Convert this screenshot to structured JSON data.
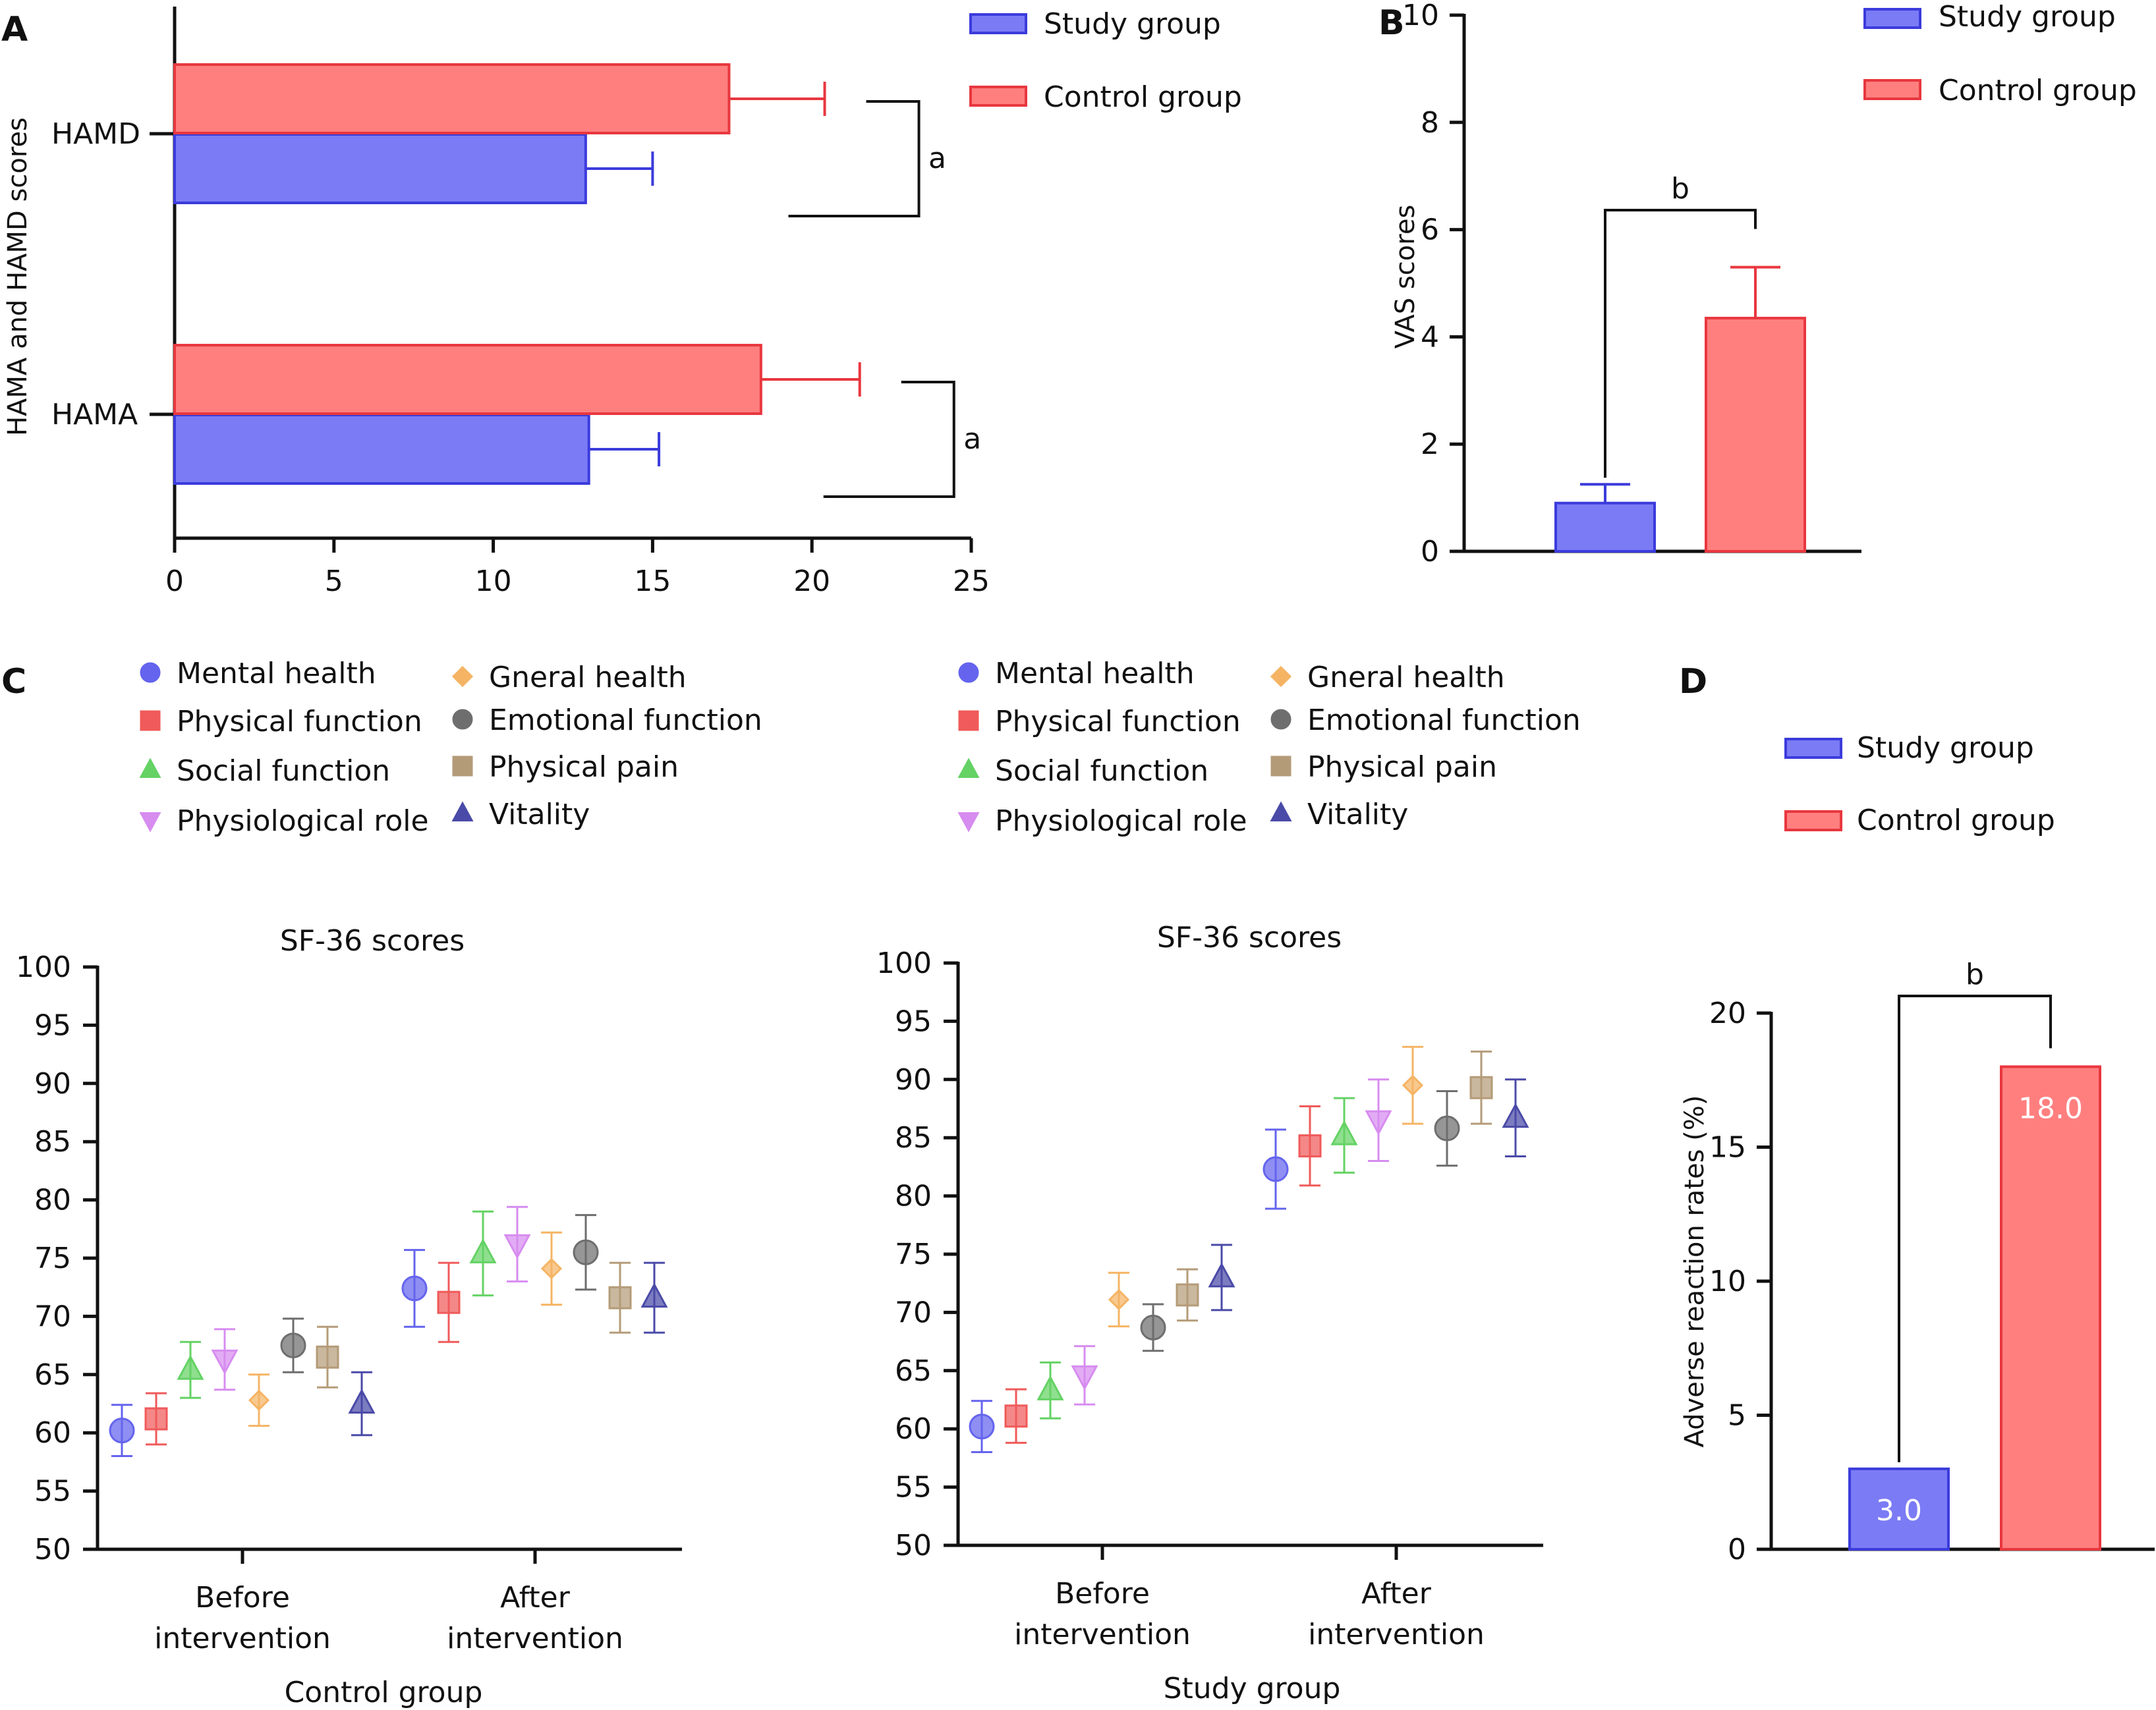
{
  "colors": {
    "study_fill": "#7b7bf5",
    "study_edge": "#3b3bdc",
    "control_fill": "#ff7f7f",
    "control_edge": "#e8373f",
    "axis": "#111111",
    "markers": {
      "mental_health": "#6464ee",
      "physical_function": "#f05a5a",
      "social_function": "#64d264",
      "physiological_role": "#d78cf0",
      "gneral_health": "#f5b464",
      "emotional_function": "#6e6e6e",
      "physical_pain": "#b49b78",
      "vitality": "#4a4aa8"
    }
  },
  "legend": {
    "study": "Study group",
    "control": "Control group"
  },
  "sf36_legend": [
    {
      "key": "mental_health",
      "label": "Mental health",
      "shape": "circle"
    },
    {
      "key": "physical_function",
      "label": "Physical function",
      "shape": "square"
    },
    {
      "key": "social_function",
      "label": "Social function",
      "shape": "triangle-up"
    },
    {
      "key": "physiological_role",
      "label": "Physiological role",
      "shape": "triangle-down"
    },
    {
      "key": "gneral_health",
      "label": "Gneral health",
      "shape": "diamond"
    },
    {
      "key": "emotional_function",
      "label": "Emotional function",
      "shape": "circle"
    },
    {
      "key": "physical_pain",
      "label": "Physical pain",
      "shape": "square"
    },
    {
      "key": "vitality",
      "label": "Vitality",
      "shape": "triangle-up"
    }
  ],
  "chart_data": [
    {
      "panel": "A",
      "type": "bar",
      "orientation": "horizontal",
      "title": "",
      "xlabel": "",
      "ylabel": "HAMA and HAMD scores",
      "xlim": [
        0,
        25
      ],
      "xticks": [
        "0",
        "5",
        "10",
        "15",
        "20",
        "25"
      ],
      "categories": [
        "HAMD",
        "HAMA"
      ],
      "series": [
        {
          "name": "Study group",
          "values": [
            12.9,
            13.0
          ],
          "errors": [
            2.1,
            2.2
          ]
        },
        {
          "name": "Control group",
          "values": [
            17.4,
            18.4
          ],
          "errors": [
            3.0,
            3.1
          ]
        }
      ],
      "significance": [
        "a",
        "a"
      ]
    },
    {
      "panel": "B",
      "type": "bar",
      "title": "",
      "xlabel": "",
      "ylabel": "VAS scores",
      "ylim": [
        0,
        10
      ],
      "yticks": [
        "0",
        "2",
        "4",
        "6",
        "8",
        "10"
      ],
      "series": [
        {
          "name": "Study group",
          "value": 0.9,
          "error": 0.35
        },
        {
          "name": "Control group",
          "value": 4.35,
          "error": 0.95
        }
      ],
      "significance": "b"
    },
    {
      "panel": "C-left",
      "type": "scatter",
      "title": "SF-36 scores",
      "xlabel": "Control group",
      "ylabel": "",
      "ylim": [
        50,
        100
      ],
      "yticks": [
        "50",
        "55",
        "60",
        "65",
        "70",
        "75",
        "80",
        "85",
        "90",
        "95",
        "100"
      ],
      "categories": [
        "Before intervention",
        "After intervention"
      ],
      "series": [
        {
          "key": "mental_health",
          "name": "Mental health",
          "values": [
            60.2,
            72.4
          ],
          "errors": [
            2.2,
            3.3
          ]
        },
        {
          "key": "physical_function",
          "name": "Physical function",
          "values": [
            61.2,
            71.2
          ],
          "errors": [
            2.2,
            3.4
          ]
        },
        {
          "key": "social_function",
          "name": "Social function",
          "values": [
            65.4,
            75.4
          ],
          "errors": [
            2.4,
            3.6
          ]
        },
        {
          "key": "physiological_role",
          "name": "Physiological role",
          "values": [
            66.3,
            76.2
          ],
          "errors": [
            2.6,
            3.2
          ]
        },
        {
          "key": "gneral_health",
          "name": "Gneral health",
          "values": [
            62.8,
            74.1
          ],
          "errors": [
            2.2,
            3.1
          ]
        },
        {
          "key": "emotional_function",
          "name": "Emotional function",
          "values": [
            67.5,
            75.5
          ],
          "errors": [
            2.3,
            3.2
          ]
        },
        {
          "key": "physical_pain",
          "name": "Physical pain",
          "values": [
            66.5,
            71.6
          ],
          "errors": [
            2.6,
            3.0
          ]
        },
        {
          "key": "vitality",
          "name": "Vitality",
          "values": [
            62.5,
            71.6
          ],
          "errors": [
            2.7,
            3.0
          ]
        }
      ]
    },
    {
      "panel": "C-right",
      "type": "scatter",
      "title": "SF-36 scores",
      "xlabel": "Study group",
      "ylabel": "",
      "ylim": [
        50,
        100
      ],
      "yticks": [
        "50",
        "55",
        "60",
        "65",
        "70",
        "75",
        "80",
        "85",
        "90",
        "95",
        "100"
      ],
      "categories": [
        "Before intervention",
        "After intervention"
      ],
      "series": [
        {
          "key": "mental_health",
          "name": "Mental health",
          "values": [
            60.2,
            82.3
          ],
          "errors": [
            2.2,
            3.4
          ]
        },
        {
          "key": "physical_function",
          "name": "Physical function",
          "values": [
            61.1,
            84.3
          ],
          "errors": [
            2.3,
            3.4
          ]
        },
        {
          "key": "social_function",
          "name": "Social function",
          "values": [
            63.3,
            85.2
          ],
          "errors": [
            2.4,
            3.2
          ]
        },
        {
          "key": "physiological_role",
          "name": "Physiological role",
          "values": [
            64.6,
            86.5
          ],
          "errors": [
            2.5,
            3.5
          ]
        },
        {
          "key": "gneral_health",
          "name": "Gneral health",
          "values": [
            71.1,
            89.5
          ],
          "errors": [
            2.3,
            3.3
          ]
        },
        {
          "key": "emotional_function",
          "name": "Emotional function",
          "values": [
            68.7,
            85.8
          ],
          "errors": [
            2.0,
            3.2
          ]
        },
        {
          "key": "physical_pain",
          "name": "Physical pain",
          "values": [
            71.5,
            89.3
          ],
          "errors": [
            2.2,
            3.1
          ]
        },
        {
          "key": "vitality",
          "name": "Vitality",
          "values": [
            73.0,
            86.7
          ],
          "errors": [
            2.8,
            3.3
          ]
        }
      ]
    },
    {
      "panel": "D",
      "type": "bar",
      "title": "",
      "xlabel": "",
      "ylabel": "Adverse reaction rates (%)",
      "ylim": [
        0,
        20
      ],
      "yticks": [
        "0",
        "5",
        "10",
        "15",
        "20"
      ],
      "series": [
        {
          "name": "Study group",
          "value": 3.0,
          "label": "3.0"
        },
        {
          "name": "Control group",
          "value": 18.0,
          "label": "18.0"
        }
      ],
      "significance": "b"
    }
  ]
}
